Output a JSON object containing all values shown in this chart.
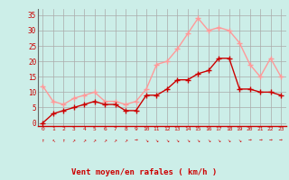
{
  "x": [
    0,
    1,
    2,
    3,
    4,
    5,
    6,
    7,
    8,
    9,
    10,
    11,
    12,
    13,
    14,
    15,
    16,
    17,
    18,
    19,
    20,
    21,
    22,
    23
  ],
  "vent_moyen": [
    0,
    3,
    4,
    5,
    6,
    7,
    6,
    6,
    4,
    4,
    9,
    9,
    11,
    14,
    14,
    16,
    17,
    21,
    21,
    11,
    11,
    10,
    10,
    9
  ],
  "rafales": [
    12,
    7,
    6,
    8,
    9,
    10,
    7,
    7,
    6,
    7,
    11,
    19,
    20,
    24,
    29,
    34,
    30,
    31,
    30,
    26,
    19,
    15,
    21,
    15
  ],
  "color_moyen": "#cc0000",
  "color_rafales": "#ff9999",
  "bg_color": "#cceee8",
  "grid_color": "#aaaaaa",
  "xlabel": "Vent moyen/en rafales ( km/h )",
  "xlabel_color": "#cc0000",
  "tick_color": "#cc0000",
  "yticks": [
    0,
    5,
    10,
    15,
    20,
    25,
    30,
    35
  ],
  "ylim": [
    -1,
    37
  ],
  "xlim": [
    -0.5,
    23.5
  ],
  "marker": "+",
  "marker_size": 4,
  "linewidth": 1.0,
  "arrows": [
    "↑",
    "↖",
    "↑",
    "↗",
    "↗",
    "↗",
    "↗",
    "↗",
    "↗",
    "→",
    "↘",
    "↘",
    "↘",
    "↘",
    "↘",
    "↘",
    "↘",
    "↘",
    "↘",
    "↘",
    "→",
    "→",
    "→",
    "→"
  ]
}
